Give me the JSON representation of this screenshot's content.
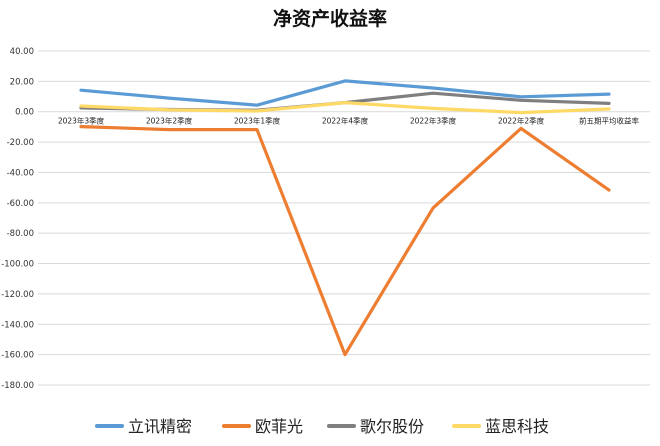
{
  "chart_data": {
    "type": "line",
    "title": "净资产收益率",
    "categories": [
      "2023年3季度",
      "2023年2季度",
      "2023年1季度",
      "2022年4季度",
      "2022年3季度",
      "2022年2季度",
      "前五期平均收益率"
    ],
    "ylim": [
      -180,
      40
    ],
    "yticks": [
      "40.00",
      "20.00",
      "0.00",
      "-20.00",
      "-40.00",
      "-60.00",
      "-80.00",
      "-100.00",
      "-120.00",
      "-140.00",
      "-160.00",
      "-180.00"
    ],
    "ytick_values": [
      40,
      20,
      0,
      -20,
      -40,
      -60,
      -80,
      -100,
      -120,
      -140,
      -160,
      -180
    ],
    "grid": true,
    "legend_position": "bottom",
    "series": [
      {
        "name": "立讯精密",
        "color": "#5B9BD5",
        "values": [
          14.2,
          9.0,
          4.3,
          20.3,
          15.6,
          9.8,
          11.6
        ]
      },
      {
        "name": "欧菲光",
        "color": "#ED7D31",
        "values": [
          -9.8,
          -11.8,
          -11.8,
          -160.0,
          -63.5,
          -11.0,
          -51.6
        ]
      },
      {
        "name": "歌尔股份",
        "color": "#7F7F7F",
        "values": [
          2.5,
          1.5,
          1.0,
          6.0,
          12.2,
          7.5,
          5.5
        ]
      },
      {
        "name": "蓝思科技",
        "color": "#FFD966",
        "values": [
          3.8,
          1.2,
          0.5,
          6.0,
          2.2,
          -0.6,
          1.8
        ]
      }
    ]
  }
}
